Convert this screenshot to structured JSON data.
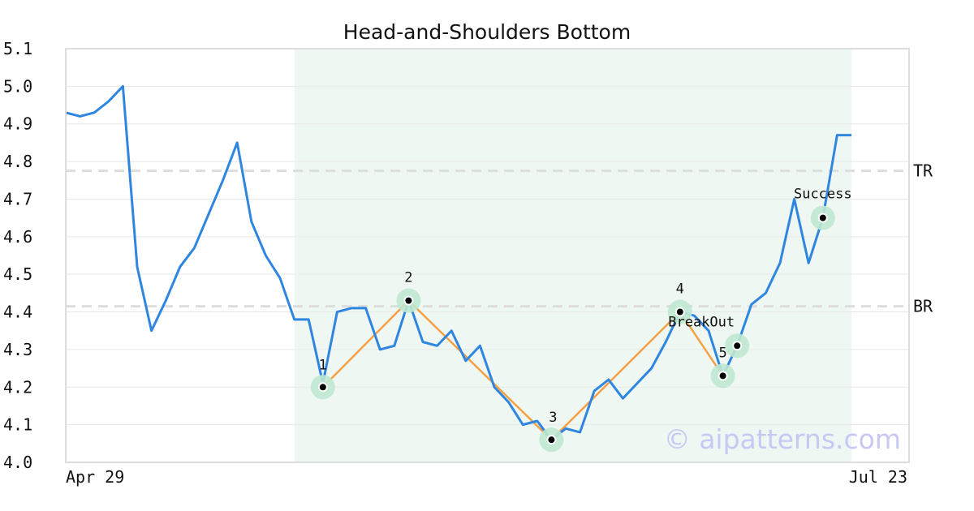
{
  "chart_data": {
    "type": "line",
    "title": "Head-and-Shoulders Bottom",
    "xlabel": "",
    "ylabel": "",
    "ylim": [
      4.0,
      5.1
    ],
    "yticks": [
      "4.0",
      "4.1",
      "4.2",
      "4.3",
      "4.4",
      "4.5",
      "4.6",
      "4.7",
      "4.8",
      "4.9",
      "5.0",
      "5.1"
    ],
    "x_tick_labels": {
      "first": "Apr 29",
      "last": "Jul 23"
    },
    "grid": true,
    "colors": {
      "price": "#2f86e0",
      "pattern": "#f5a045",
      "highlight": "#eef7f2",
      "marker_halo": "#bfe8d2",
      "level": "#dddddd",
      "watermark": "#c8c8f4"
    },
    "series": [
      {
        "values": [
          4.93,
          4.92,
          4.93,
          4.96,
          5.0,
          4.52,
          4.35,
          4.43,
          4.52,
          4.57,
          4.66,
          4.75,
          4.85,
          4.64,
          4.55,
          4.49,
          4.38,
          4.38,
          4.21,
          4.4,
          4.41,
          4.41,
          4.3,
          4.31,
          4.43,
          4.32,
          4.31,
          4.35,
          4.27,
          4.31,
          4.2,
          4.16,
          4.1,
          4.11,
          4.06,
          4.09,
          4.08,
          4.19,
          4.22,
          4.17,
          4.21,
          4.25,
          4.32,
          4.4,
          4.39,
          4.35,
          4.23,
          4.31,
          4.42,
          4.45,
          4.53,
          4.7,
          4.53,
          4.65,
          4.87,
          4.87
        ]
      }
    ],
    "pattern_highlight": {
      "start_index": 16,
      "end_index": 55
    },
    "pattern_points": [
      {
        "label": "1",
        "index": 18,
        "value": 4.2
      },
      {
        "label": "2",
        "index": 24,
        "value": 4.43
      },
      {
        "label": "3",
        "index": 34,
        "value": 4.06
      },
      {
        "label": "4",
        "index": 43,
        "value": 4.4
      },
      {
        "label": "5",
        "index": 46,
        "value": 4.23
      }
    ],
    "markers": [
      {
        "label": "BreakOut",
        "index": 47,
        "value": 4.31
      },
      {
        "label": "Success",
        "index": 53,
        "value": 4.65
      }
    ],
    "levels": [
      {
        "label": "TR",
        "value": 4.775
      },
      {
        "label": "BR",
        "value": 4.415
      }
    ],
    "watermark": "© aipatterns.com"
  }
}
